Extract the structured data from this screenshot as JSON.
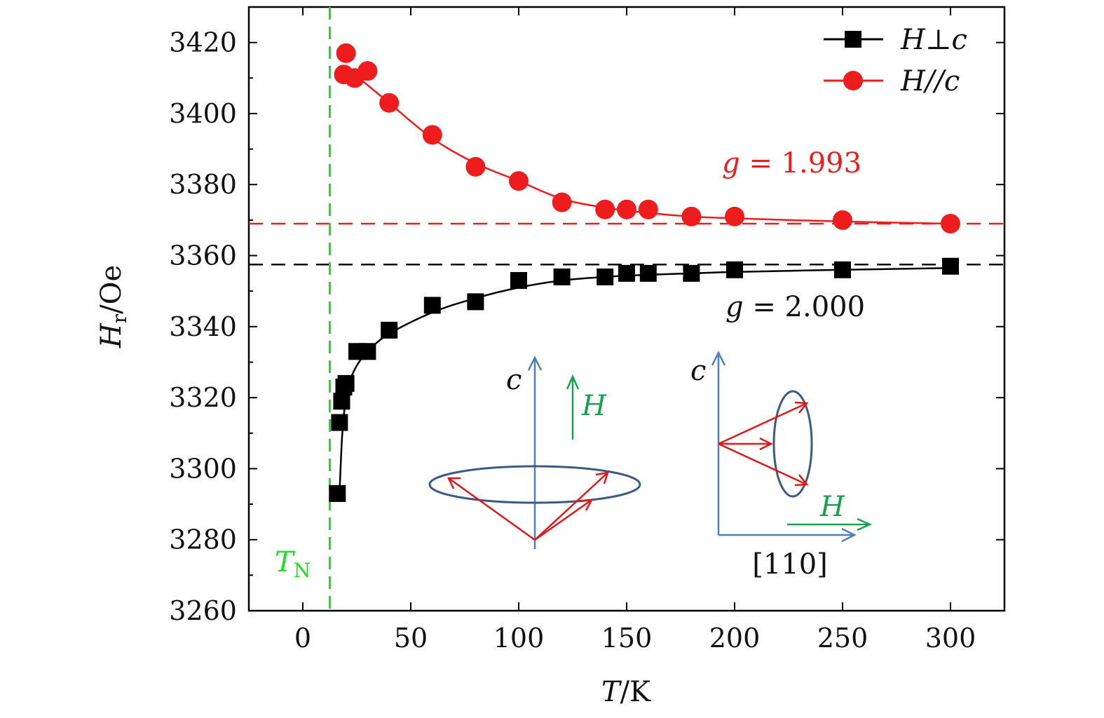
{
  "chart_data": {
    "type": "scatter",
    "xlabel": {
      "var": "T",
      "unit": "/K"
    },
    "ylabel": {
      "var": "H",
      "sub": "r",
      "unit": "/Oe"
    },
    "xlim": [
      -25,
      325
    ],
    "ylim": [
      3260,
      3430
    ],
    "xticks": [
      0,
      50,
      100,
      150,
      200,
      250,
      300
    ],
    "yticks": [
      3260,
      3280,
      3300,
      3320,
      3340,
      3360,
      3380,
      3400,
      3420
    ],
    "legend_position": "top-right",
    "series": [
      {
        "name": "H⊥c",
        "color": "#000000",
        "marker": "square",
        "points": [
          [
            16,
            3293
          ],
          [
            17,
            3313
          ],
          [
            18,
            3319
          ],
          [
            19,
            3323
          ],
          [
            20,
            3324
          ],
          [
            25,
            3333
          ],
          [
            30,
            3333
          ],
          [
            40,
            3339
          ],
          [
            60,
            3346
          ],
          [
            80,
            3347
          ],
          [
            100,
            3353
          ],
          [
            120,
            3354
          ],
          [
            140,
            3354
          ],
          [
            150,
            3355
          ],
          [
            160,
            3355
          ],
          [
            180,
            3355
          ],
          [
            200,
            3356
          ],
          [
            250,
            3356
          ],
          [
            300,
            3357
          ]
        ],
        "fit": [
          [
            17,
            3293
          ],
          [
            18,
            3307
          ],
          [
            19,
            3315
          ],
          [
            20,
            3320
          ],
          [
            22,
            3325
          ],
          [
            25,
            3329
          ],
          [
            30,
            3333
          ],
          [
            40,
            3338
          ],
          [
            60,
            3344
          ],
          [
            80,
            3348
          ],
          [
            100,
            3351
          ],
          [
            120,
            3353
          ],
          [
            140,
            3354
          ],
          [
            160,
            3354.6
          ],
          [
            180,
            3355
          ],
          [
            200,
            3355.4
          ],
          [
            250,
            3356
          ],
          [
            300,
            3356.5
          ]
        ]
      },
      {
        "name": "H//c",
        "color": "#ee1c1c",
        "marker": "circle",
        "points": [
          [
            20,
            3417
          ],
          [
            19,
            3411
          ],
          [
            24,
            3410
          ],
          [
            30,
            3412
          ],
          [
            40,
            3403
          ],
          [
            60,
            3394
          ],
          [
            80,
            3385
          ],
          [
            100,
            3381
          ],
          [
            120,
            3375
          ],
          [
            140,
            3373
          ],
          [
            150,
            3373
          ],
          [
            160,
            3373
          ],
          [
            180,
            3371
          ],
          [
            200,
            3371
          ],
          [
            250,
            3370
          ],
          [
            300,
            3369
          ]
        ],
        "fit": [
          [
            20,
            3412
          ],
          [
            25,
            3410.5
          ],
          [
            30,
            3408
          ],
          [
            40,
            3403
          ],
          [
            60,
            3393
          ],
          [
            80,
            3386
          ],
          [
            100,
            3381
          ],
          [
            120,
            3376
          ],
          [
            140,
            3373.5
          ],
          [
            160,
            3372
          ],
          [
            180,
            3371
          ],
          [
            200,
            3370.5
          ],
          [
            250,
            3369.6
          ],
          [
            300,
            3369
          ]
        ]
      }
    ],
    "reference_lines": {
      "g_perp": {
        "y": 3357.5,
        "color": "#000000"
      },
      "g_par": {
        "y": 3369,
        "color": "#ee1c1c"
      },
      "TN": {
        "x": 12.5,
        "color": "#22dd22"
      }
    },
    "annotations": {
      "g_par_label": {
        "var": "g",
        "eq": " = 1.993",
        "color": "#ee1c1c"
      },
      "g_perp_label": {
        "var": "g",
        "eq": " = 2.000",
        "color": "#111111"
      },
      "TN_label": {
        "var": "T",
        "sub": "N",
        "color": "#22dd22"
      }
    },
    "insets": {
      "left": {
        "axis_label": "c",
        "field_label": "H"
      },
      "right": {
        "axis_label": "c",
        "field_label": "H",
        "direction_label": "[110]"
      }
    },
    "colors": {
      "axis_blue": "#4f7fb8",
      "ellipse": "#3d5a80",
      "vector_red": "#e01818",
      "field_green": "#1aa050"
    }
  }
}
